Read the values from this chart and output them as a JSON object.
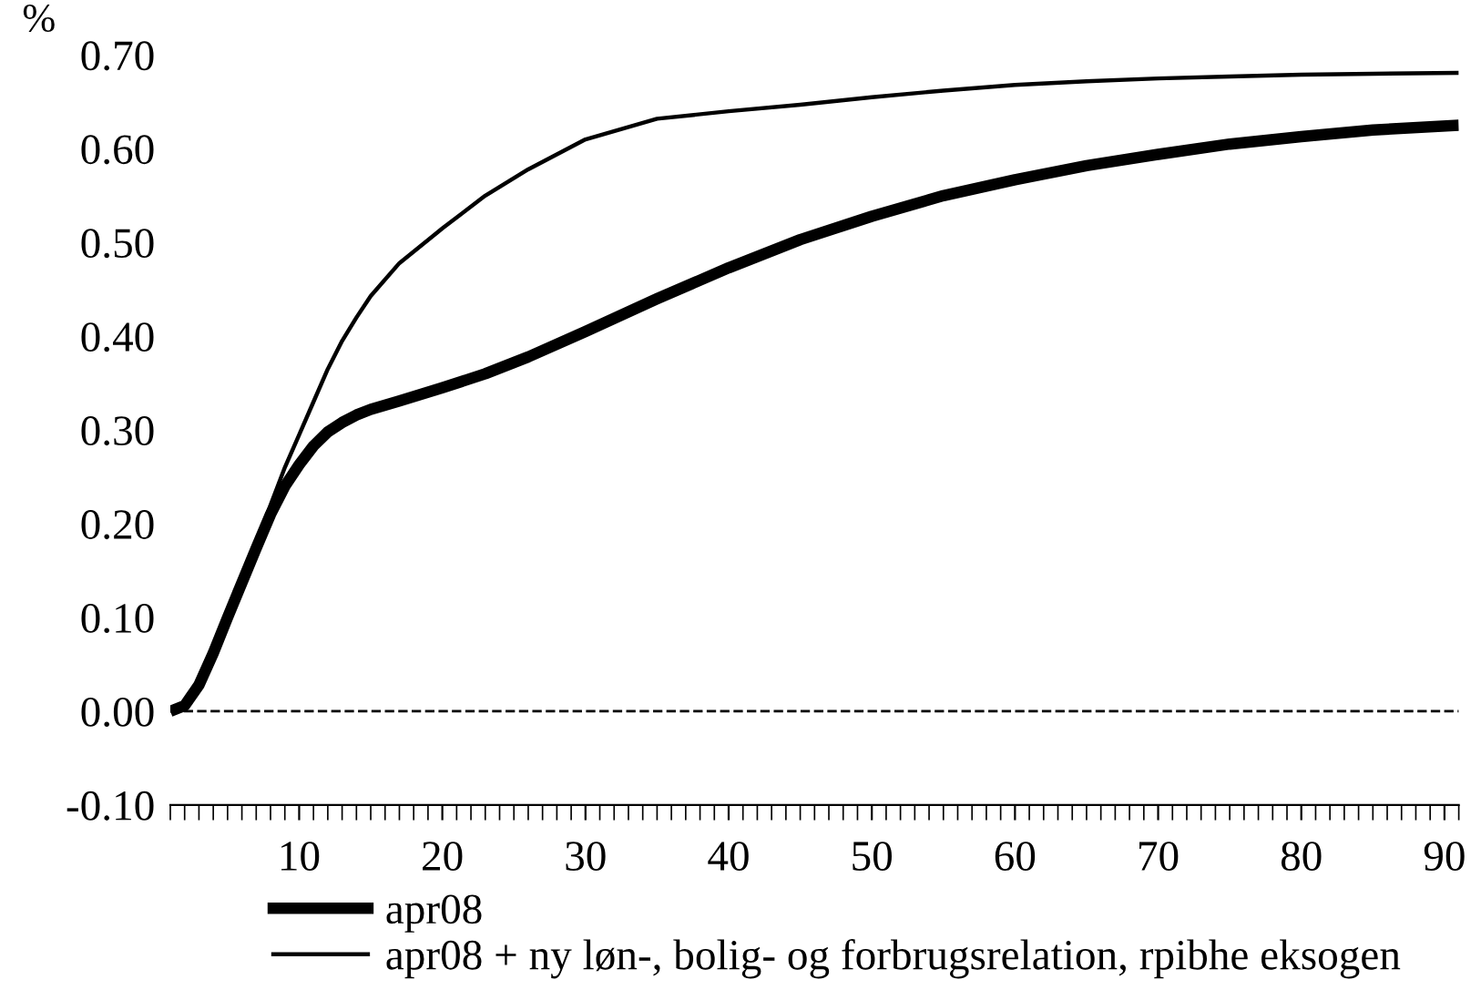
{
  "chart_data": {
    "type": "line",
    "ylabel": "%",
    "x": [
      1,
      2,
      3,
      4,
      5,
      6,
      7,
      8,
      9,
      10,
      11,
      12,
      13,
      14,
      15,
      17,
      20,
      23,
      26,
      30,
      35,
      40,
      45,
      50,
      55,
      60,
      65,
      70,
      75,
      80,
      85,
      91
    ],
    "series": [
      {
        "name": "apr08",
        "color": "#000000",
        "values": [
          0.0,
          0.006,
          0.028,
          0.062,
          0.1,
          0.137,
          0.174,
          0.21,
          0.24,
          0.263,
          0.283,
          0.298,
          0.308,
          0.316,
          0.322,
          0.331,
          0.345,
          0.36,
          0.378,
          0.405,
          0.44,
          0.473,
          0.503,
          0.528,
          0.55,
          0.567,
          0.582,
          0.594,
          0.605,
          0.613,
          0.62,
          0.625
        ]
      },
      {
        "name": "apr08 + ny løn-, bolig- og forbrugsrelation, rpibhe eksogen",
        "color": "#000000",
        "values": [
          0.0,
          0.006,
          0.028,
          0.062,
          0.1,
          0.14,
          0.18,
          0.22,
          0.26,
          0.295,
          0.33,
          0.365,
          0.395,
          0.42,
          0.443,
          0.478,
          0.515,
          0.55,
          0.578,
          0.61,
          0.632,
          0.64,
          0.647,
          0.655,
          0.662,
          0.668,
          0.672,
          0.675,
          0.677,
          0.679,
          0.68,
          0.681
        ]
      }
    ],
    "ylim": [
      -0.1,
      0.7
    ],
    "yticks": [
      {
        "value": -0.1,
        "label": "-0.10"
      },
      {
        "value": 0,
        "label": "0.00"
      },
      {
        "value": 0.1,
        "label": "0.10"
      },
      {
        "value": 0.2,
        "label": "0.20"
      },
      {
        "value": 0.3,
        "label": "0.30"
      },
      {
        "value": 0.4,
        "label": "0.40"
      },
      {
        "value": 0.5,
        "label": "0.50"
      },
      {
        "value": 0.6,
        "label": "0.60"
      },
      {
        "value": 0.7,
        "label": "0.70"
      }
    ],
    "xlim": [
      1,
      91
    ],
    "xticks": [
      10,
      20,
      30,
      40,
      50,
      60,
      70,
      80,
      90
    ],
    "ref_lines": [
      {
        "axis": "y",
        "value": 0,
        "color": "#000000",
        "line_style": "dashed"
      }
    ],
    "legend": "bottom",
    "grid": false,
    "marker": "none",
    "line_style": "solid"
  }
}
